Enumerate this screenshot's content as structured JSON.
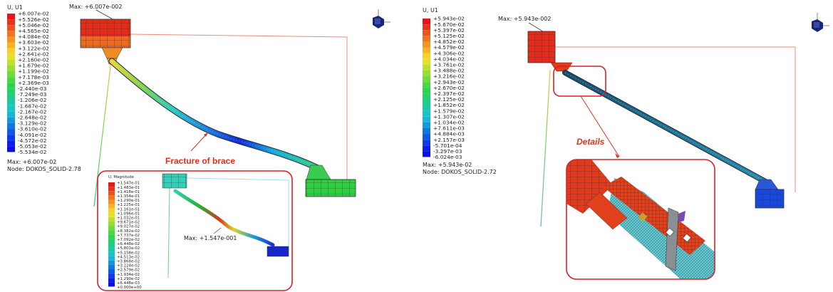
{
  "left": {
    "legend_title": "U, U1",
    "legend_values": [
      "+6.007e-02",
      "+5.526e-02",
      "+5.046e-02",
      "+4.565e-02",
      "+4.084e-02",
      "+3.603e-02",
      "+3.122e-02",
      "+2.641e-02",
      "+2.160e-02",
      "+1.679e-02",
      "+1.199e-02",
      "+7.178e-03",
      "+2.369e-03",
      "-2.440e-03",
      "-7.249e-03",
      "-1.206e-02",
      "-1.687e-02",
      "-2.167e-02",
      "-2.648e-02",
      "-3.129e-02",
      "-3.610e-02",
      "-4.091e-02",
      "-4.572e-02",
      "-5.053e-02",
      "-5.534e-02"
    ],
    "legend_colors": [
      "#e4141b",
      "#e8321c",
      "#ec521e",
      "#ef7320",
      "#f39322",
      "#f6b224",
      "#f9d126",
      "#e3e22a",
      "#bde030",
      "#96dd36",
      "#6fda3c",
      "#48d742",
      "#2ad44c",
      "#24d06a",
      "#1ecc8a",
      "#1ac8aa",
      "#18c4c8",
      "#16b6d6",
      "#1497dc",
      "#1278e0",
      "#1059e4",
      "#0e3ae8",
      "#0c1cec",
      "#0a10e0",
      "#0808c8"
    ],
    "max_label": "Max: +6.007e-02",
    "node_label": "Node: DOKOS_SOLID-2.78",
    "max_annotation": "Max: +6.007e-002",
    "fracture_label": "Fracture of brace",
    "inset": {
      "legend_title": "U, Magnitude",
      "legend_values": [
        "+1.547e-01",
        "+1.483e-01",
        "+1.418e-01",
        "+1.354e-01",
        "+1.290e-01",
        "+1.225e-01",
        "+1.161e-01",
        "+1.096e-01",
        "+1.032e-01",
        "+9.671e-02",
        "+9.027e-02",
        "+8.382e-02",
        "+7.737e-02",
        "+7.092e-02",
        "+6.448e-02",
        "+5.803e-02",
        "+5.158e-02",
        "+4.513e-02",
        "+3.868e-02",
        "+3.224e-02",
        "+2.579e-02",
        "+1.934e-02",
        "+1.290e-02",
        "+6.448e-03",
        "+0.000e+00"
      ],
      "max_annotation": "Max: +1.547e-001"
    }
  },
  "right": {
    "legend_title": "U, U1",
    "legend_values": [
      "+5.943e-02",
      "+5.670e-02",
      "+5.397e-02",
      "+5.125e-02",
      "+4.852e-02",
      "+4.579e-02",
      "+4.306e-02",
      "+4.034e-02",
      "+3.761e-02",
      "+3.488e-02",
      "+3.216e-02",
      "+2.943e-02",
      "+2.670e-02",
      "+2.397e-02",
      "+2.125e-02",
      "+1.852e-02",
      "+1.579e-02",
      "+1.307e-02",
      "+1.034e-02",
      "+7.611e-03",
      "+4.884e-03",
      "+2.157e-03",
      "-5.701e-04",
      "-3.297e-03",
      "-6.024e-03"
    ],
    "max_label": "Max: +5.943e-02",
    "node_label": "Node: DOKOS_SOLID-2.72",
    "max_annotation": "Max: +5.943e-002",
    "details_label": "Details"
  },
  "colors": {
    "highlight": "#d9202a",
    "annotation": "#e0301e"
  }
}
